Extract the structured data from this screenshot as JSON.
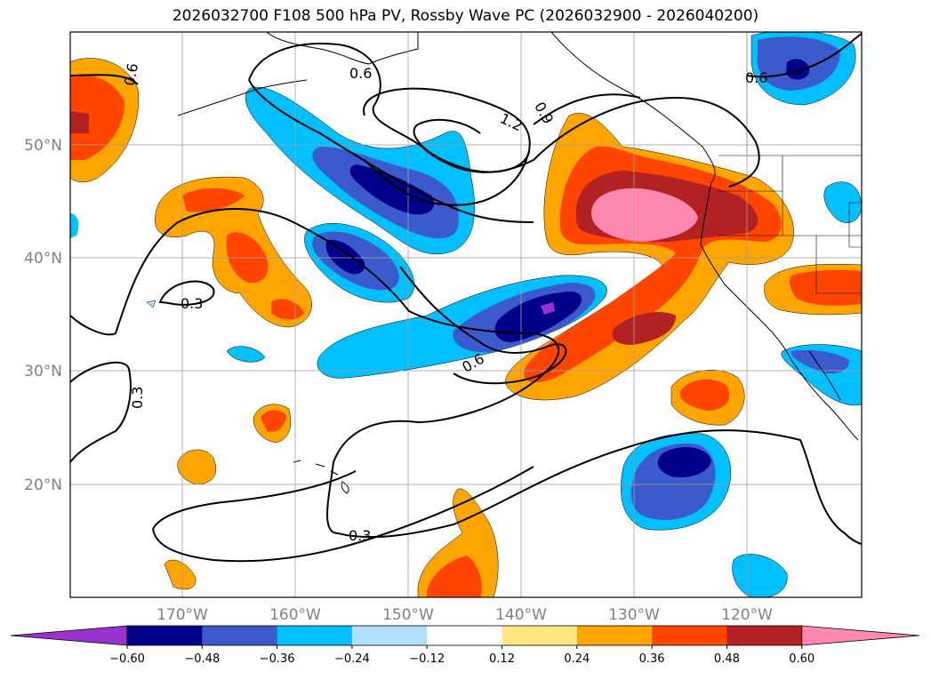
{
  "title": "2026032700 F108 500 hPa PV, Rossby Wave PC (2026032900 - 2026040200)",
  "map": {
    "lat_labels": [
      "50°N",
      "40°N",
      "30°N",
      "20°N"
    ],
    "lon_labels": [
      "170°W",
      "160°W",
      "150°W",
      "140°W",
      "130°W",
      "120°W"
    ],
    "contour_labels": [
      "0.6",
      "0.6",
      "1.2",
      "0.9",
      "0.6",
      "0.3",
      "0.3",
      "0.6",
      "0.3"
    ]
  },
  "colorbar": {
    "ticks": [
      "−0.60",
      "−0.48",
      "−0.36",
      "−0.24",
      "−0.12",
      "0.12",
      "0.24",
      "0.36",
      "0.48",
      "0.60"
    ],
    "colors": [
      "#9932cc",
      "#00008b",
      "#3b5bcc",
      "#00bfff",
      "#b0e0ff",
      "#ffffff",
      "#ffe680",
      "#ffa500",
      "#ff4500",
      "#b22222",
      "#ff88b0"
    ]
  }
}
